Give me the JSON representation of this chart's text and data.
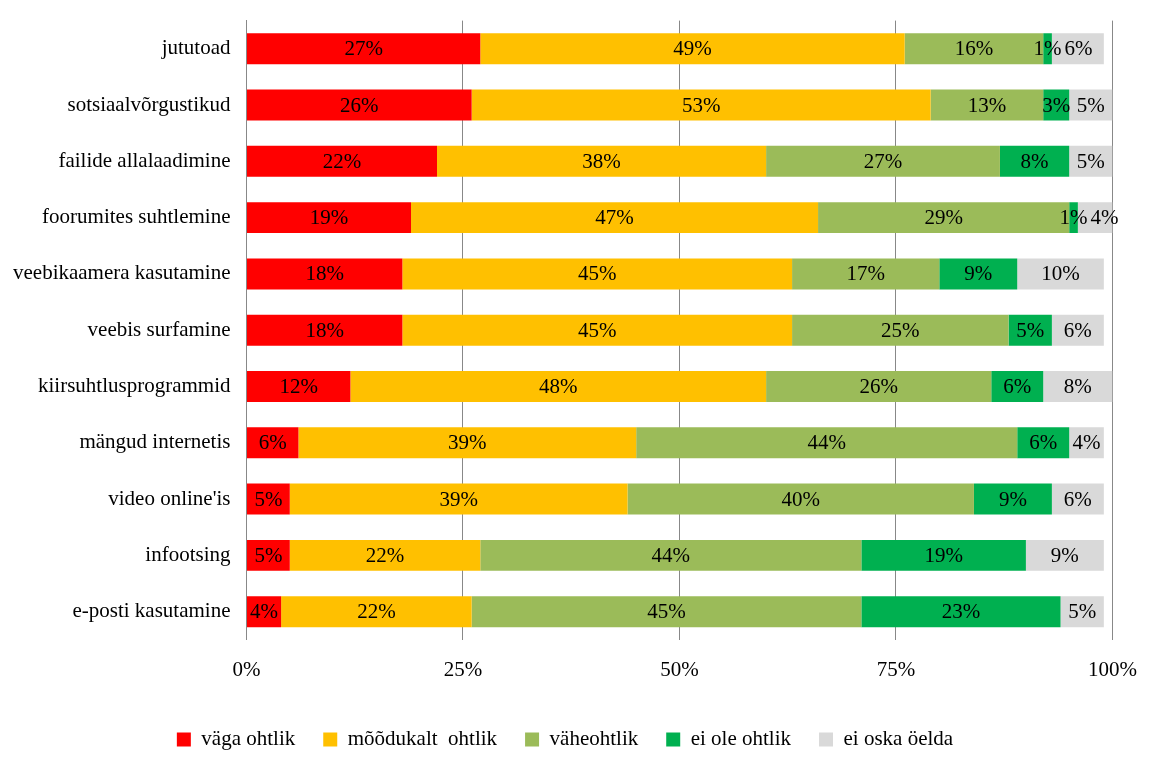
{
  "chart_data": {
    "type": "bar",
    "orientation": "horizontal",
    "stacked": true,
    "categories": [
      "jututoad",
      "sotsiaalvõrgustikud",
      "failide allalaadimine",
      "foorumites suhtlemine",
      "veebikaamera kasutamine",
      "veebis surfamine",
      "kiirsuhtlusprogrammid",
      "mängud internetis",
      "video online'is",
      "infootsing",
      "e-posti kasutamine"
    ],
    "series": [
      {
        "name": "väga ohtlik",
        "color": "#ff0000",
        "values": [
          27,
          26,
          22,
          19,
          18,
          18,
          12,
          6,
          5,
          5,
          4
        ],
        "value_labels": [
          "27%",
          "26%",
          "22%",
          "19%",
          "18%",
          "18%",
          "12%",
          "6%",
          "5%",
          "5%",
          "4%"
        ]
      },
      {
        "name": "mõõdukalt  ohtlik",
        "color": "#ffc000",
        "values": [
          49,
          53,
          38,
          47,
          45,
          45,
          48,
          39,
          39,
          22,
          22
        ],
        "value_labels": [
          "49%",
          "53%",
          "38%",
          "47%",
          "45%",
          "45%",
          "48%",
          "39%",
          "39%",
          "22%",
          "22%"
        ]
      },
      {
        "name": "väheohtlik",
        "color": "#9bbb59",
        "values": [
          16,
          13,
          27,
          29,
          17,
          25,
          26,
          44,
          40,
          44,
          45
        ],
        "value_labels": [
          "16%",
          "13%",
          "27%",
          "29%",
          "17%",
          "25%",
          "26%",
          "44%",
          "40%",
          "44%",
          "45%"
        ]
      },
      {
        "name": "ei ole ohtlik",
        "color": "#00b050",
        "values": [
          1,
          3,
          8,
          1,
          9,
          5,
          6,
          6,
          9,
          19,
          23
        ],
        "value_labels": [
          "1%",
          "3%",
          "8%",
          "1%",
          "9%",
          "5%",
          "6%",
          "6%",
          "9%",
          "19%",
          "23%"
        ]
      },
      {
        "name": "ei oska öelda",
        "color": "#d9d9d9",
        "values": [
          6,
          5,
          5,
          4,
          10,
          6,
          8,
          4,
          6,
          9,
          5
        ],
        "value_labels": [
          "6%",
          "5%",
          "5%",
          "4%",
          "10%",
          "6%",
          "8%",
          "4%",
          "6%",
          "9%",
          "5%"
        ]
      }
    ],
    "xlim": [
      0,
      100
    ],
    "xticks": [
      {
        "value": 0,
        "label": "0%"
      },
      {
        "value": 25,
        "label": "25%"
      },
      {
        "value": 50,
        "label": "50%"
      },
      {
        "value": 75,
        "label": "75%"
      },
      {
        "value": 100,
        "label": "100%"
      }
    ],
    "grid": "x",
    "legend": "bottom"
  }
}
